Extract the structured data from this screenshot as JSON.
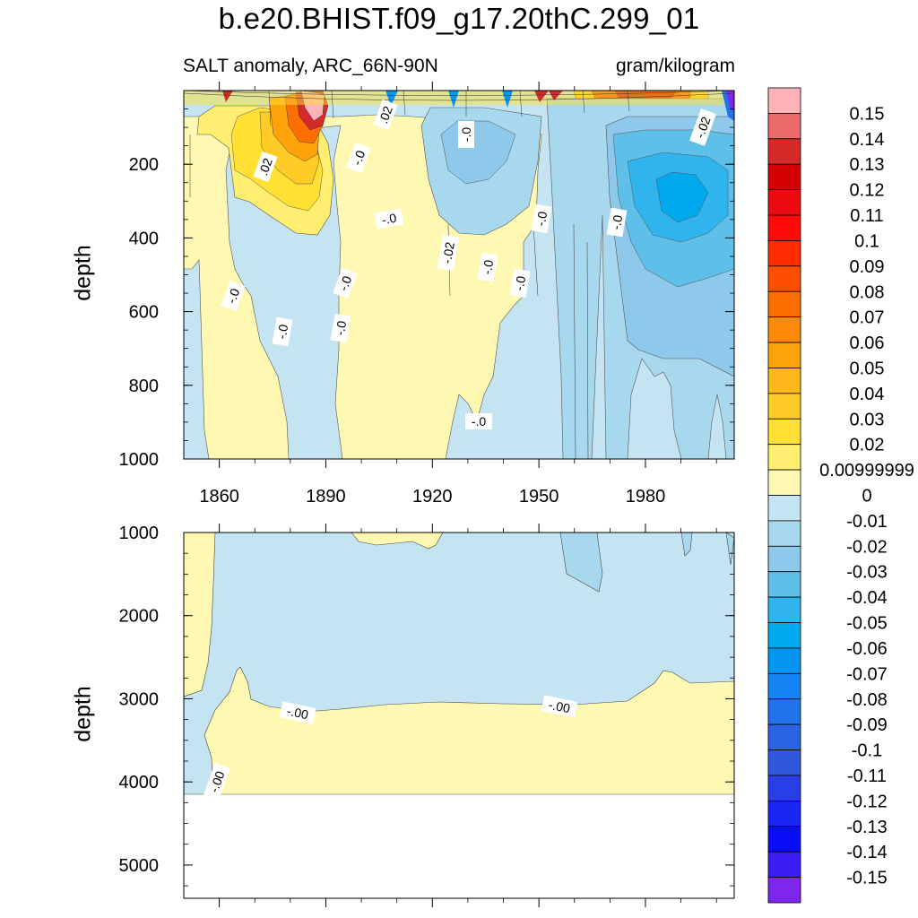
{
  "title": "b.e20.BHIST.f09_g17.20thC.299_01",
  "subtitle_left": "SALT anomaly, ARC_66N-90N",
  "subtitle_right": "gram/kilogram",
  "chart_data": [
    {
      "type": "contour",
      "panel": "upper",
      "ylabel": "depth",
      "xlabel": "",
      "x_ticks": [
        "1860",
        "1890",
        "1920",
        "1950",
        "1980"
      ],
      "x_tick_values": [
        1860,
        1890,
        1920,
        1950,
        1980
      ],
      "xlim": [
        1850,
        2005
      ],
      "y_ticks": [
        "200",
        "400",
        "600",
        "800",
        "1000"
      ],
      "y_tick_values": [
        200,
        400,
        600,
        800,
        1000
      ],
      "ylim": [
        0,
        1000
      ],
      "y_inverted": true,
      "grid": false,
      "contour_labels": [
        ".02",
        "-.0",
        ".02",
        "-.0",
        "-.0",
        "-.0",
        "-.02",
        "-.0",
        "-.0",
        "-.0",
        "-.0",
        "-.0",
        "-.0",
        "-.0",
        "-.0",
        "-.0",
        "-.0",
        ".02",
        "-.02"
      ]
    },
    {
      "type": "contour",
      "panel": "lower",
      "ylabel": "depth",
      "xlabel": "",
      "x_ticks": [],
      "xlim": [
        1850,
        2005
      ],
      "y_ticks": [
        "1000",
        "2000",
        "3000",
        "4000",
        "5000"
      ],
      "y_tick_values": [
        1000,
        2000,
        3000,
        4000,
        5000
      ],
      "ylim": [
        1000,
        5400
      ],
      "y_inverted": true,
      "grid": false,
      "contour_labels": [
        "-.00",
        "-.00",
        "-.00"
      ]
    }
  ],
  "colorbar": {
    "labels": [
      "0.15",
      "0.14",
      "0.13",
      "0.12",
      "0.11",
      "0.1",
      "0.09",
      "0.08",
      "0.07",
      "0.06",
      "0.05",
      "0.04",
      "0.03",
      "0.02",
      "0.00999999",
      "0",
      "-0.01",
      "-0.02",
      "-0.03",
      "-0.04",
      "-0.05",
      "-0.06",
      "-0.07",
      "-0.08",
      "-0.09",
      "-0.1",
      "-0.11",
      "-0.12",
      "-0.13",
      "-0.14",
      "-0.15"
    ],
    "colors": [
      "#ffb3b8",
      "#ec6a6a",
      "#d42a2a",
      "#d40000",
      "#ea0a10",
      "#fe0a0a",
      "#fe2c00",
      "#fe4f00",
      "#fe6e00",
      "#ff8a0a",
      "#ffa30a",
      "#ffb71a",
      "#ffcb26",
      "#ffe033",
      "#ffee70",
      "#fff8b3",
      "#c4e4f2",
      "#a8d8ee",
      "#8ec8ea",
      "#5ebfe8",
      "#2fb4ee",
      "#00a8ee",
      "#0496f0",
      "#1584f4",
      "#2272ec",
      "#2a64e4",
      "#3158dc",
      "#2a3ee8",
      "#1a26f2",
      "#0a0ef8",
      "#3a1cf4",
      "#7e26ec"
    ]
  }
}
